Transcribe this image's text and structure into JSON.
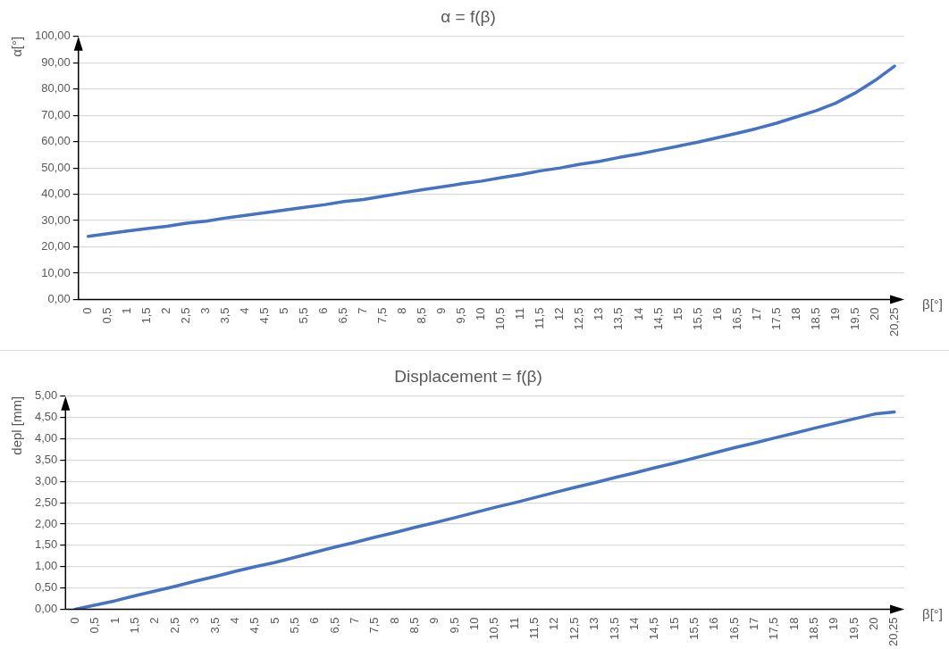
{
  "chart_data": [
    {
      "type": "line",
      "title": "α = f(β)",
      "xlabel": "β[°]",
      "ylabel": "α[°]",
      "categories": [
        "0",
        "0,5",
        "1",
        "1,5",
        "2",
        "2,5",
        "3",
        "3,5",
        "4",
        "4,5",
        "5",
        "5,5",
        "6",
        "6,5",
        "7",
        "7,5",
        "8",
        "8,5",
        "9",
        "9,5",
        "10",
        "10,5",
        "11",
        "11,5",
        "12",
        "12,5",
        "13",
        "13,5",
        "14",
        "14,5",
        "15",
        "15,5",
        "16",
        "16,5",
        "17",
        "17,5",
        "18",
        "18,5",
        "19",
        "19,5",
        "20",
        "20,25"
      ],
      "series": [
        {
          "color": "#4472c4",
          "values": [
            24,
            25,
            26,
            27,
            27.8,
            29,
            29.8,
            31,
            32,
            33,
            34,
            35,
            36,
            37.2,
            38,
            39.3,
            40.5,
            41.7,
            42.8,
            44,
            45,
            46.3,
            47.5,
            48.9,
            50,
            51.4,
            52.5,
            54,
            55.3,
            56.8,
            58.3,
            59.8,
            61.5,
            63.2,
            65,
            67,
            69.4,
            71.7,
            74.6,
            78.5,
            83.2,
            88.7
          ]
        }
      ],
      "ylim": [
        0,
        100
      ],
      "yticks": [
        {
          "value": 0,
          "label": "0,00"
        },
        {
          "value": 10,
          "label": "10,00"
        },
        {
          "value": 20,
          "label": "20,00"
        },
        {
          "value": 30,
          "label": "30,00"
        },
        {
          "value": 40,
          "label": "40,00"
        },
        {
          "value": 50,
          "label": "50,00"
        },
        {
          "value": 60,
          "label": "60,00"
        },
        {
          "value": 70,
          "label": "70,00"
        },
        {
          "value": 80,
          "label": "80,00"
        },
        {
          "value": 90,
          "label": "90,00"
        },
        {
          "value": 100,
          "label": "100,00"
        }
      ],
      "grid": "y",
      "legend": false,
      "marker": "none",
      "line_style": "solid"
    },
    {
      "type": "line",
      "title": "Displacement = f(β)",
      "xlabel": "β[°]",
      "ylabel": "depl [mm]",
      "categories": [
        "0",
        "0,5",
        "1",
        "1,5",
        "2",
        "2,5",
        "3",
        "3,5",
        "4",
        "4,5",
        "5",
        "5,5",
        "6",
        "6,5",
        "7",
        "7,5",
        "8",
        "8,5",
        "9",
        "9,5",
        "10",
        "10,5",
        "11",
        "11,5",
        "12",
        "12,5",
        "13",
        "13,5",
        "14",
        "14,5",
        "15",
        "15,5",
        "16",
        "16,5",
        "17",
        "17,5",
        "18",
        "18,5",
        "19",
        "19,5",
        "20",
        "20,25"
      ],
      "series": [
        {
          "color": "#4472c4",
          "values": [
            0,
            0.1,
            0.2,
            0.32,
            0.43,
            0.54,
            0.66,
            0.77,
            0.89,
            1.0,
            1.1,
            1.22,
            1.34,
            1.46,
            1.57,
            1.69,
            1.8,
            1.92,
            2.03,
            2.15,
            2.27,
            2.39,
            2.5,
            2.62,
            2.74,
            2.86,
            2.97,
            3.09,
            3.2,
            3.32,
            3.43,
            3.55,
            3.67,
            3.79,
            3.9,
            4.02,
            4.13,
            4.25,
            4.36,
            4.47,
            4.58,
            4.63
          ]
        }
      ],
      "ylim": [
        0,
        5
      ],
      "yticks": [
        {
          "value": 0,
          "label": "0,00"
        },
        {
          "value": 0.5,
          "label": "0,50"
        },
        {
          "value": 1,
          "label": "1,00"
        },
        {
          "value": 1.5,
          "label": "1,50"
        },
        {
          "value": 2,
          "label": "2,00"
        },
        {
          "value": 2.5,
          "label": "2,50"
        },
        {
          "value": 3,
          "label": "3,00"
        },
        {
          "value": 3.5,
          "label": "3,50"
        },
        {
          "value": 4,
          "label": "4,00"
        },
        {
          "value": 4.5,
          "label": "4,50"
        },
        {
          "value": 5,
          "label": "5,00"
        }
      ],
      "grid": "y",
      "legend": false,
      "marker": "none",
      "line_style": "solid"
    }
  ]
}
